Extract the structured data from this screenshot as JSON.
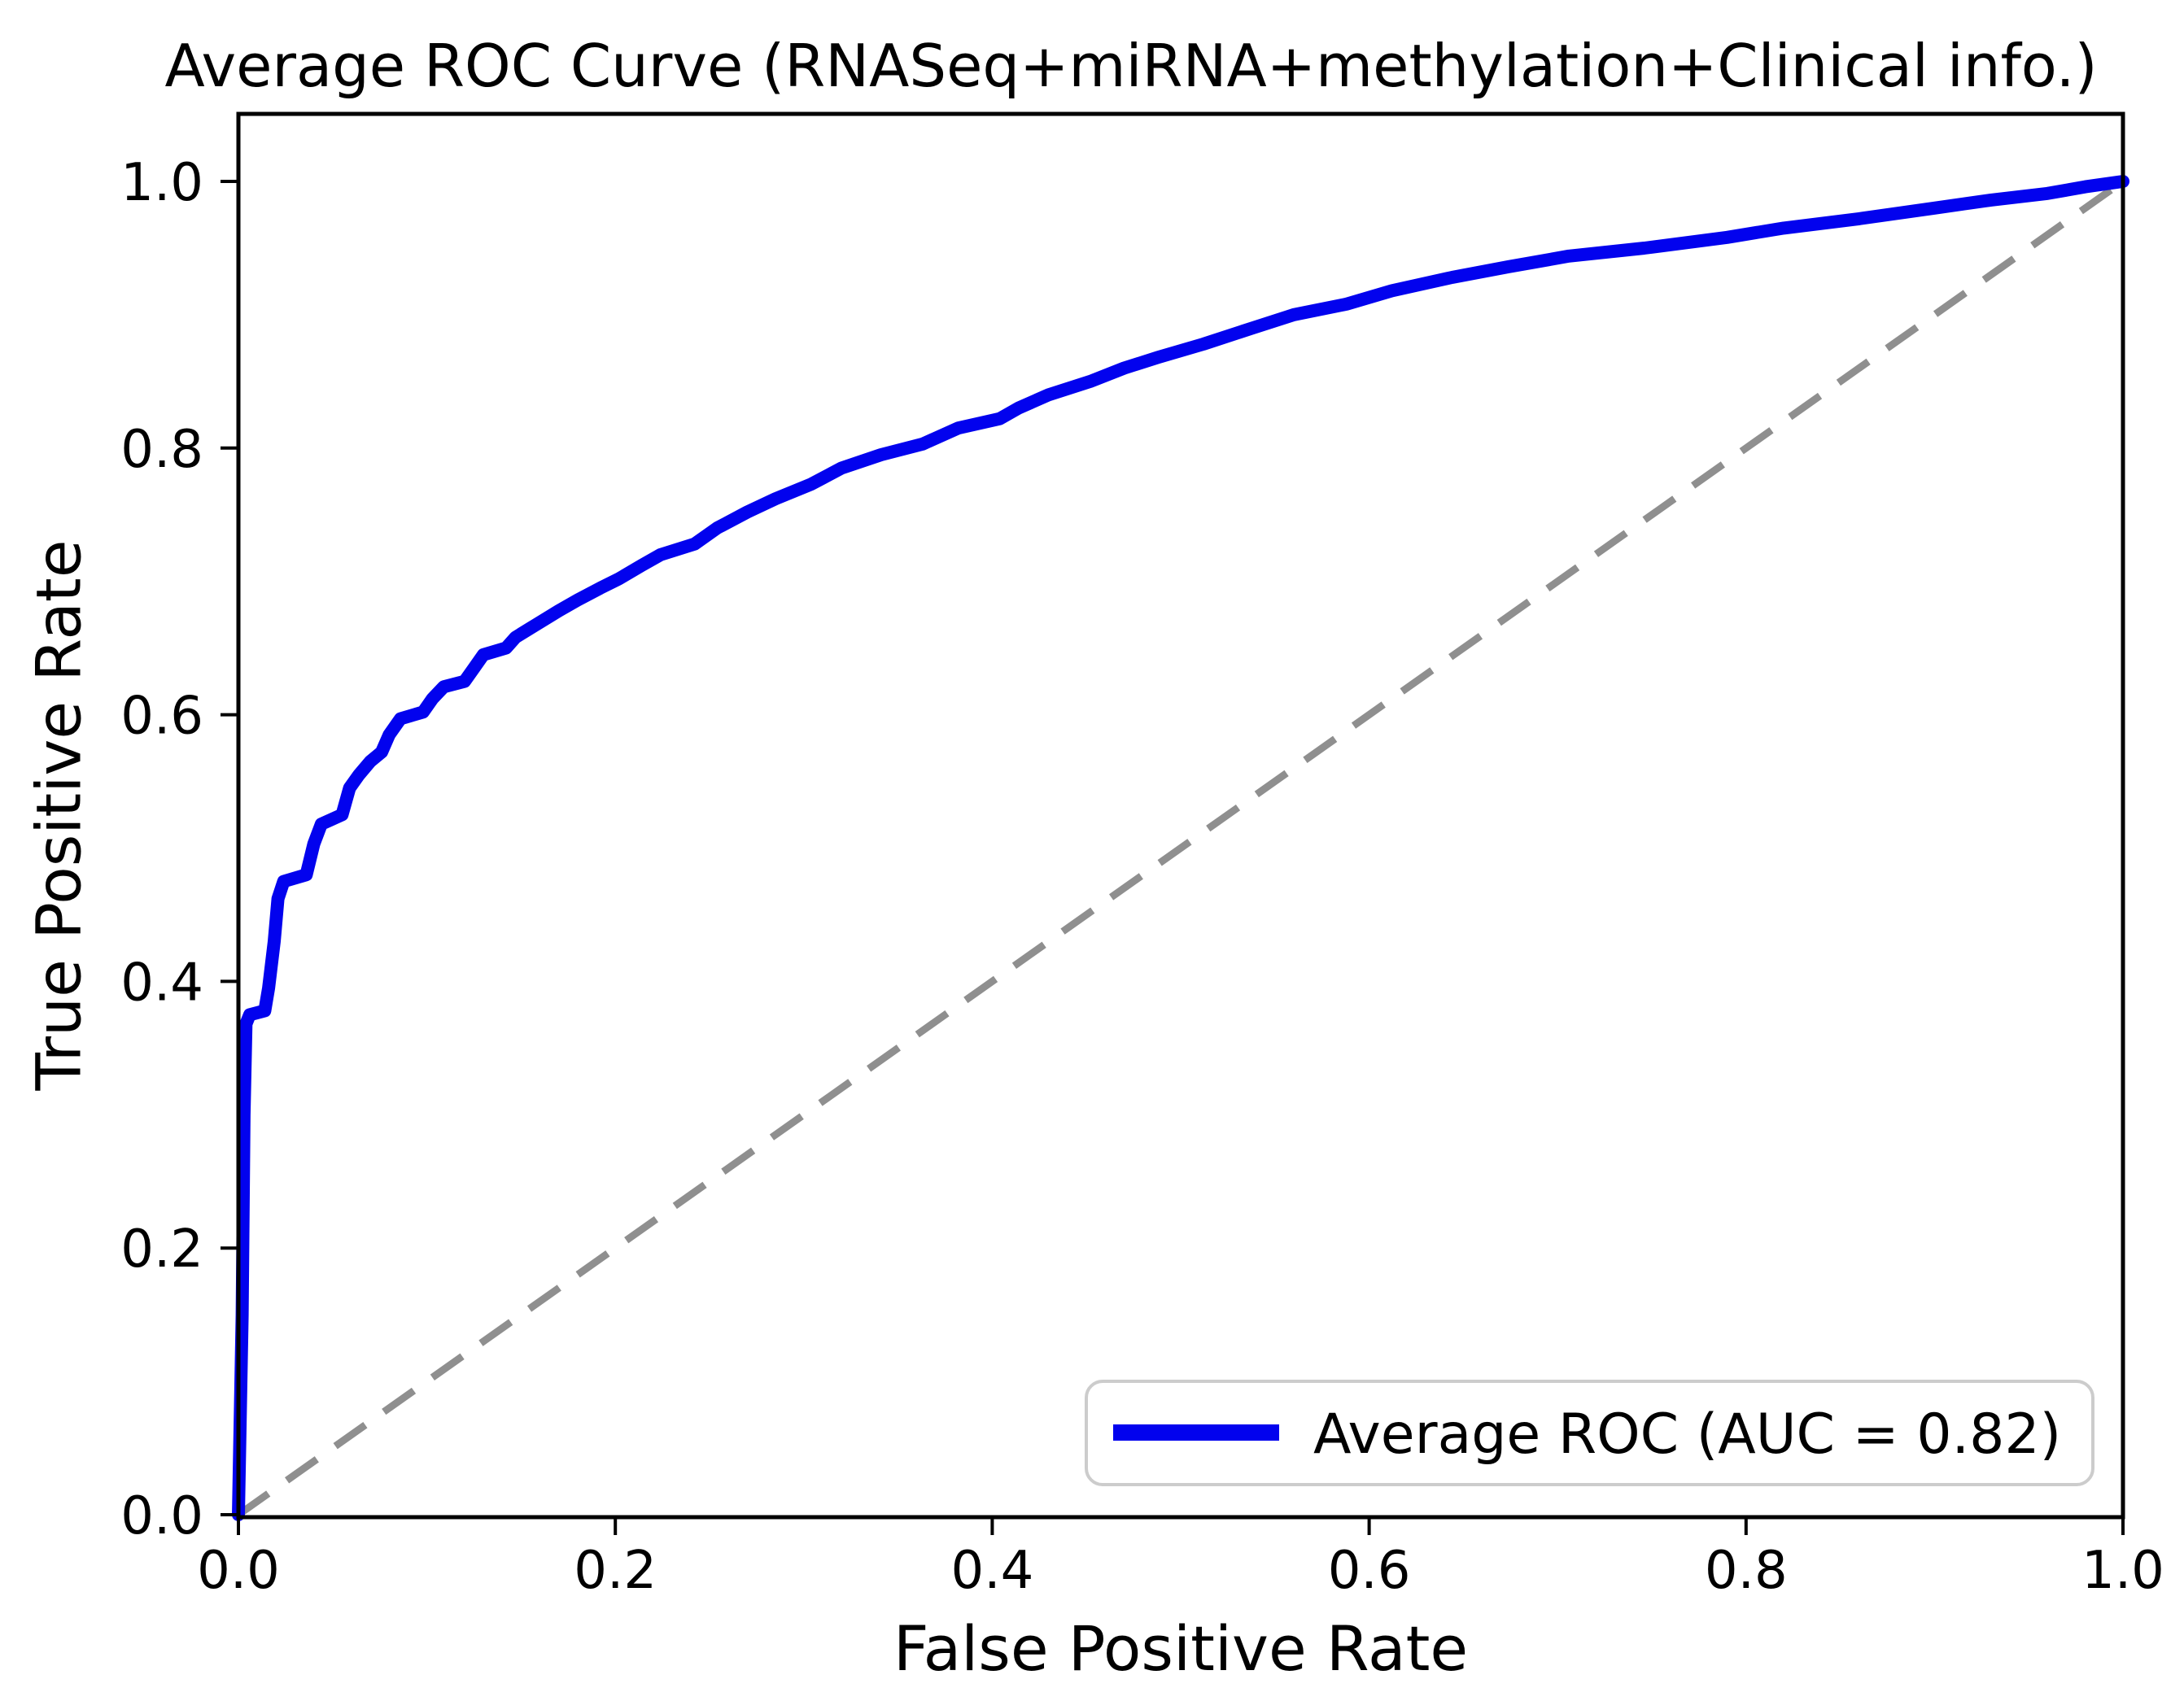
{
  "chart_data": {
    "type": "line",
    "title": "Average ROC Curve (RNASeq+miRNA+methylation+Clinical info.)",
    "xlabel": "False Positive Rate",
    "ylabel": "True Positive Rate",
    "xlim": [
      0.0,
      1.0
    ],
    "ylim": [
      0.0,
      1.0
    ],
    "xticks": [
      "0.0",
      "0.2",
      "0.4",
      "0.6",
      "0.8",
      "1.0"
    ],
    "yticks": [
      "0.0",
      "0.2",
      "0.4",
      "0.6",
      "0.8",
      "1.0"
    ],
    "grid": false,
    "legend": {
      "label": "Average ROC (AUC = 0.82)",
      "position": "lower right"
    },
    "auc": 0.82,
    "colors": {
      "roc_line": "#0202EE",
      "chance_line": "#8F8F8F",
      "axes": "#000000",
      "legend_border": "#CCCCCC",
      "background": "#FFFFFF"
    },
    "chance_line": {
      "x": [
        0.0,
        1.0
      ],
      "y": [
        0.0,
        1.0
      ],
      "style": "dashed"
    },
    "series": [
      {
        "name": "Average ROC",
        "x": [
          0.0,
          0.002,
          0.003,
          0.004,
          0.006,
          0.014,
          0.016,
          0.019,
          0.021,
          0.024,
          0.036,
          0.04,
          0.044,
          0.055,
          0.059,
          0.064,
          0.07,
          0.076,
          0.08,
          0.086,
          0.098,
          0.103,
          0.109,
          0.12,
          0.125,
          0.13,
          0.142,
          0.147,
          0.155,
          0.17,
          0.18,
          0.192,
          0.202,
          0.214,
          0.224,
          0.242,
          0.254,
          0.27,
          0.285,
          0.304,
          0.32,
          0.341,
          0.363,
          0.382,
          0.404,
          0.414,
          0.43,
          0.452,
          0.47,
          0.488,
          0.512,
          0.538,
          0.56,
          0.588,
          0.612,
          0.644,
          0.674,
          0.706,
          0.746,
          0.79,
          0.82,
          0.86,
          0.9,
          0.93,
          0.96,
          0.98,
          1.0
        ],
        "y": [
          0.0,
          0.15,
          0.3,
          0.368,
          0.375,
          0.378,
          0.395,
          0.43,
          0.462,
          0.475,
          0.48,
          0.503,
          0.518,
          0.525,
          0.545,
          0.555,
          0.565,
          0.572,
          0.585,
          0.597,
          0.602,
          0.612,
          0.621,
          0.625,
          0.635,
          0.645,
          0.65,
          0.658,
          0.665,
          0.678,
          0.686,
          0.695,
          0.702,
          0.712,
          0.72,
          0.728,
          0.74,
          0.752,
          0.762,
          0.773,
          0.785,
          0.795,
          0.803,
          0.815,
          0.822,
          0.83,
          0.84,
          0.85,
          0.86,
          0.868,
          0.878,
          0.89,
          0.9,
          0.908,
          0.918,
          0.928,
          0.936,
          0.944,
          0.95,
          0.958,
          0.965,
          0.972,
          0.98,
          0.986,
          0.991,
          0.996,
          1.0
        ]
      }
    ]
  }
}
